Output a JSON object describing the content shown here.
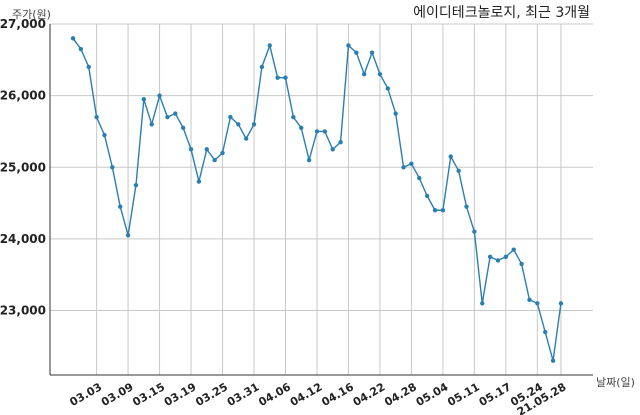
{
  "chart_data": {
    "type": "line",
    "title": "에이디테크놀로지, 최근 3개월",
    "xlabel": "날짜(일)",
    "ylabel": "주가(원)",
    "ylim": [
      22100,
      27000
    ],
    "yticks": [
      23000,
      24000,
      25000,
      26000,
      27000
    ],
    "ytick_labels": [
      "23,000",
      "24,000",
      "25,000",
      "26,000",
      "27,000"
    ],
    "xtick_labels": [
      "03.03",
      "03.09",
      "03.15",
      "03.19",
      "03.25",
      "03.31",
      "04.06",
      "04.12",
      "04.16",
      "04.22",
      "04.28",
      "05.04",
      "05.11",
      "05.17",
      "05.24",
      "21.05.28"
    ],
    "xtick_index": [
      3,
      7,
      11,
      15,
      19,
      23,
      27,
      31,
      35,
      39,
      43,
      47,
      51,
      55,
      59,
      62
    ],
    "grid": true,
    "series": [
      {
        "color": "#2a7fb0",
        "values": [
          26800,
          26650,
          26400,
          25700,
          25450,
          25000,
          24450,
          24050,
          24750,
          25950,
          25600,
          26000,
          25700,
          25750,
          25550,
          25250,
          24800,
          25250,
          25100,
          25200,
          25700,
          25600,
          25400,
          25600,
          26400,
          26700,
          26250,
          26250,
          25700,
          25550,
          25100,
          25500,
          25500,
          25250,
          25350,
          26700,
          26600,
          26300,
          26600,
          26300,
          26100,
          25750,
          25000,
          25050,
          24850,
          24600,
          24400,
          24400,
          25150,
          24950,
          24450,
          24100,
          23100,
          23750,
          23700,
          23750,
          23850,
          23650,
          23150,
          23100,
          22700,
          22300,
          23100
        ]
      }
    ]
  }
}
